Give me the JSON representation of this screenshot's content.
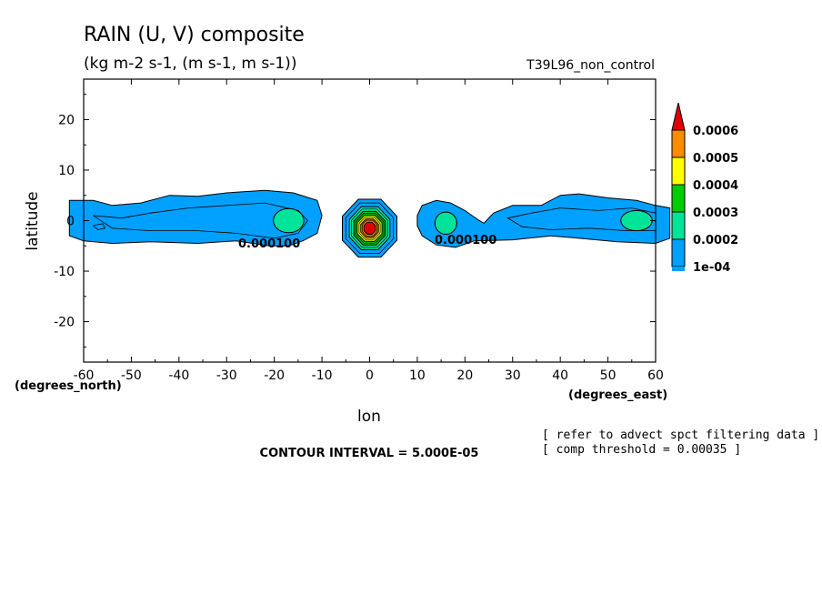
{
  "chart_data": {
    "type": "contour",
    "title": "RAIN (U, V) composite",
    "subtitle": "(kg m-2 s-1, (m s-1, m s-1))",
    "experiment": "T39L96_non_control",
    "xlabel": "lon",
    "ylabel": "latitude",
    "x_units_label": "(degrees_east)",
    "y_units_label": "(degrees_north)",
    "xlim": [
      -60,
      60
    ],
    "ylim": [
      -28,
      28
    ],
    "xticks": [
      -60,
      -50,
      -40,
      -30,
      -20,
      -10,
      0,
      10,
      20,
      30,
      40,
      50,
      60
    ],
    "yticks": [
      -20,
      -10,
      0,
      10,
      20
    ],
    "contour_interval_text": "CONTOUR INTERVAL = 5.000E-05",
    "contour_labels": [
      "0.000100",
      "0.000100"
    ],
    "notes": [
      "[ refer to advect spct filtering data ]",
      "[ comp threshold = 0.00035 ]"
    ],
    "colorbar": {
      "levels": [
        "0.0006",
        "0.0005",
        "0.0004",
        "0.0003",
        "0.0002",
        "1e-04"
      ],
      "colors": [
        "#ff8c00",
        "#ffff00",
        "#00cc00",
        "#00e49a",
        "#00a0ff",
        "#00a0ff"
      ],
      "max_color": "#e00000"
    },
    "features": [
      {
        "name": "western band",
        "lon_range": [
          -63,
          -10
        ],
        "lat_range": [
          -5,
          5.5
        ],
        "max_level": "0.0003",
        "center": [
          -17,
          0
        ]
      },
      {
        "name": "central maximum",
        "lon_range": [
          -7,
          5
        ],
        "lat_range": [
          -7,
          4
        ],
        "max_level": "0.0006+",
        "center": [
          0,
          -1.5
        ]
      },
      {
        "name": "eastern band",
        "lon_range": [
          10,
          63
        ],
        "lat_range": [
          -5.5,
          4
        ],
        "max_level": "0.0003",
        "centers": [
          [
            16,
            -0.5
          ],
          [
            56,
            0
          ]
        ]
      }
    ]
  }
}
